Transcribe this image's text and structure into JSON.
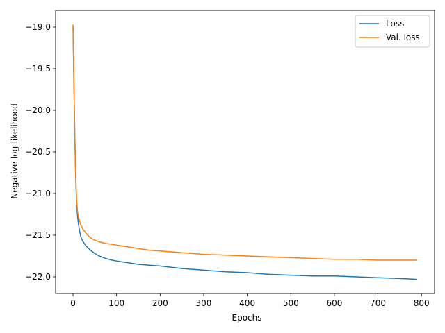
{
  "chart_data": {
    "type": "line",
    "title": "",
    "xlabel": "Epochs",
    "ylabel": "Negative log-likelihood",
    "xlim": [
      -40,
      830
    ],
    "ylim": [
      -22.2,
      -18.8
    ],
    "xticks": [
      0,
      100,
      200,
      300,
      400,
      500,
      600,
      700,
      800
    ],
    "yticks": [
      -22.0,
      -21.5,
      -21.0,
      -20.5,
      -20.0,
      -19.5,
      -19.0
    ],
    "ytick_labels": [
      "−22.0",
      "−21.5",
      "−21.0",
      "−20.5",
      "−20.0",
      "−19.5",
      "−19.0"
    ],
    "grid": false,
    "legend_position": "top-right",
    "series": [
      {
        "name": "Loss",
        "color": "#1f77b4",
        "x": [
          0,
          2,
          4,
          6,
          8,
          10,
          12,
          15,
          18,
          22,
          26,
          30,
          40,
          50,
          60,
          75,
          90,
          100,
          125,
          150,
          175,
          200,
          250,
          300,
          350,
          400,
          450,
          500,
          550,
          600,
          650,
          700,
          750,
          790
        ],
        "y": [
          -19.0,
          -19.7,
          -20.3,
          -20.8,
          -21.1,
          -21.25,
          -21.35,
          -21.45,
          -21.52,
          -21.57,
          -21.6,
          -21.63,
          -21.68,
          -21.72,
          -21.75,
          -21.78,
          -21.8,
          -21.81,
          -21.83,
          -21.85,
          -21.86,
          -21.87,
          -21.9,
          -21.92,
          -21.94,
          -21.95,
          -21.97,
          -21.98,
          -21.99,
          -21.99,
          -22.0,
          -22.01,
          -22.02,
          -22.03
        ]
      },
      {
        "name": "Val. loss",
        "color": "#ff7f0e",
        "x": [
          0,
          2,
          4,
          6,
          8,
          10,
          12,
          15,
          18,
          22,
          26,
          30,
          40,
          50,
          60,
          75,
          90,
          100,
          125,
          150,
          175,
          200,
          250,
          300,
          350,
          400,
          450,
          500,
          550,
          600,
          650,
          700,
          750,
          790
        ],
        "y": [
          -18.97,
          -19.65,
          -20.25,
          -20.75,
          -21.05,
          -21.2,
          -21.27,
          -21.33,
          -21.38,
          -21.42,
          -21.45,
          -21.48,
          -21.53,
          -21.56,
          -21.58,
          -21.6,
          -21.61,
          -21.62,
          -21.64,
          -21.66,
          -21.68,
          -21.69,
          -21.71,
          -21.73,
          -21.74,
          -21.75,
          -21.76,
          -21.77,
          -21.78,
          -21.79,
          -21.79,
          -21.8,
          -21.8,
          -21.8
        ]
      }
    ]
  }
}
